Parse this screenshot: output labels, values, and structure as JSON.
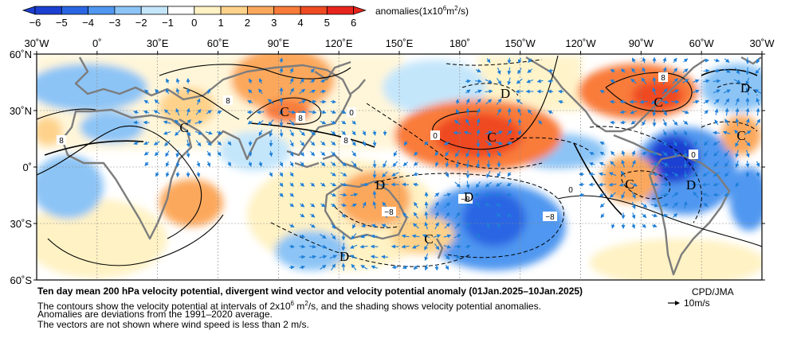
{
  "colorbar": {
    "ticks": [
      "−6",
      "−5",
      "−4",
      "−3",
      "−2",
      "−1",
      "0",
      "1",
      "2",
      "3",
      "4",
      "5",
      "6"
    ],
    "colors": [
      "#1c3fd2",
      "#2a66e3",
      "#4f97f0",
      "#8cc4f6",
      "#c4e6fb",
      "#ffffff",
      "#fff2c4",
      "#fed28a",
      "#fca85c",
      "#f97b3a",
      "#ef4a22",
      "#e8251d"
    ],
    "label": "anomalies(1x10",
    "label_sup": "6",
    "label_tail": "m",
    "label_sup2": "2",
    "label_end": "/s)"
  },
  "map": {
    "top_longitudes": [
      "30˚W",
      "0˚",
      "30˚E",
      "60˚E",
      "90˚E",
      "120˚E",
      "150˚E",
      "180˚",
      "150˚W",
      "120˚W",
      "90˚W",
      "60˚W",
      "30˚W"
    ],
    "latitudes": [
      "60˚N",
      "30˚N",
      "0˚",
      "30˚S",
      "60˚S"
    ],
    "center_labels": [
      {
        "text": "C"
      },
      {
        "text": "C"
      },
      {
        "text": "C"
      },
      {
        "text": "C"
      },
      {
        "text": "C"
      },
      {
        "text": "C"
      },
      {
        "text": "C"
      },
      {
        "text": "D"
      },
      {
        "text": "D"
      },
      {
        "text": "D"
      },
      {
        "text": "D"
      },
      {
        "text": "D"
      },
      {
        "text": "D"
      }
    ],
    "contour_labels": [
      "8",
      "8",
      "8",
      "8",
      "0",
      "0",
      "0",
      "−8",
      "−8",
      "−8",
      "8",
      "0"
    ],
    "land_color": "#7d7d7d",
    "vector_color": "#1e7fd8",
    "contour_color": "#000000"
  },
  "caption": {
    "title": "Ten day mean 200 hPa velocity potential, divergent wind vector and velocity potential anomaly (01Jan.2025–10Jan.2025)",
    "line1_pre": "The contours show the velocity potential at intervals of 2x10",
    "line1_sup": "6",
    "line1_mid": " m",
    "line1_sup2": "2",
    "line1_post": "/s, and the shading shows velocity potential anomalies.",
    "line2": "Anomalies are deviations from the 1991–2020 average.",
    "line3": "The vectors are not shown where wind speed is less than 2 m/s."
  },
  "credit": {
    "agency": "CPD/JMA",
    "scale_arrow": "→",
    "scale_label": "10m/s"
  }
}
